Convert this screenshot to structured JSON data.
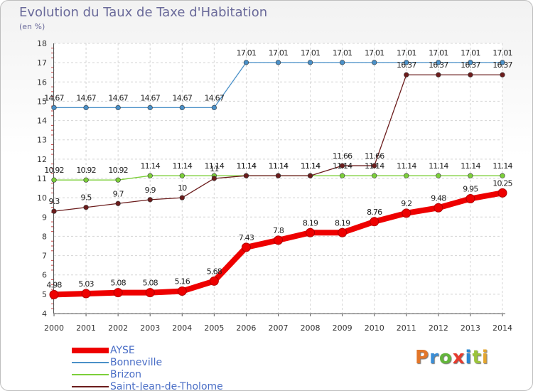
{
  "header": {
    "title": "Evolution du Taux de Taxe d'Habitation",
    "unit": "(en %)"
  },
  "logo": {
    "text": "Proxiti",
    "colors": [
      "#e2762a",
      "#3b8ed6",
      "#63b53b",
      "#e63b2e",
      "#2a88d2",
      "#9bc43a",
      "#e3a52e"
    ]
  },
  "chart_data": {
    "type": "line",
    "x": [
      "2000",
      "2001",
      "2002",
      "2003",
      "2004",
      "2005",
      "2006",
      "2007",
      "2008",
      "2009",
      "2010",
      "2011",
      "2012",
      "2013",
      "2014"
    ],
    "ylim": [
      4,
      18
    ],
    "yticks": [
      "4",
      "5",
      "6",
      "7",
      "8",
      "9",
      "10",
      "11",
      "12",
      "13",
      "14",
      "15",
      "16",
      "17",
      "18"
    ],
    "grid": true,
    "legend_position": "bottom-left",
    "series": [
      {
        "name": "AYSE",
        "color": "#ee0000",
        "emphasis": true,
        "values": [
          4.98,
          5.03,
          5.08,
          5.08,
          5.16,
          5.68,
          7.43,
          7.8,
          8.19,
          8.19,
          8.76,
          9.2,
          9.48,
          9.95,
          10.25
        ],
        "labels": [
          "4.98",
          "5.03",
          "5.08",
          "5.08",
          "5.16",
          "5.68",
          "7.43",
          "7.8",
          "8.19",
          "8.19",
          "8.76",
          "9.2",
          "9.48",
          "9.95",
          "10.25"
        ]
      },
      {
        "name": "Bonneville",
        "color": "#4a90c8",
        "values": [
          14.67,
          14.67,
          14.67,
          14.67,
          14.67,
          14.67,
          17.01,
          17.01,
          17.01,
          17.01,
          17.01,
          17.01,
          17.01,
          17.01,
          17.01
        ],
        "labels": [
          "14.67",
          "14.67",
          "14.67",
          "14.67",
          "14.67",
          "14.67",
          "17.01",
          "17.01",
          "17.01",
          "17.01",
          "17.01",
          "17.01",
          "17.01",
          "17.01",
          "17.01"
        ]
      },
      {
        "name": "Brizon",
        "color": "#7ccf3a",
        "values": [
          10.92,
          10.92,
          10.92,
          11.14,
          11.14,
          11.14,
          11.14,
          11.14,
          11.14,
          11.14,
          11.14,
          11.14,
          11.14,
          11.14,
          11.14
        ],
        "labels": [
          "10.92",
          "10.92",
          "10.92",
          "11.14",
          "11.14",
          "11.14",
          "11.14",
          "11.14",
          "11.14",
          "11.14",
          "11.14",
          "11.14",
          "11.14",
          "11.14",
          "11.14"
        ]
      },
      {
        "name": "Saint-Jean-de-Tholome",
        "color": "#6b1c1c",
        "values": [
          9.3,
          9.5,
          9.7,
          9.9,
          10,
          11,
          11.14,
          11.14,
          11.14,
          11.66,
          11.66,
          16.37,
          16.37,
          16.37,
          16.37
        ],
        "labels": [
          "9.3",
          "9.5",
          "9.7",
          "9.9",
          "10",
          "11",
          "11.14",
          "11.14",
          "11.14",
          "11.66",
          "11.66",
          "16.37",
          "16.37",
          "16.37",
          "16.37"
        ]
      }
    ]
  }
}
